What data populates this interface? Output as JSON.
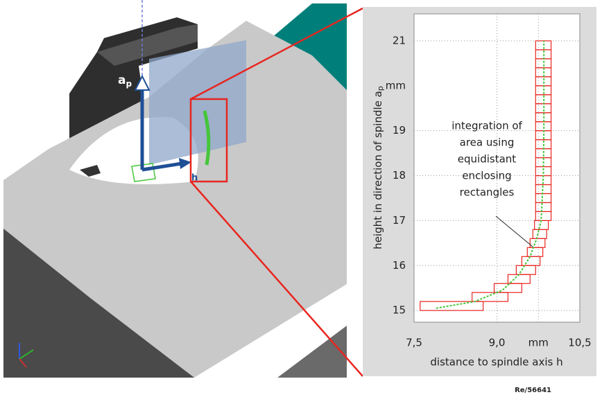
{
  "chart_data": {
    "type": "rectangles",
    "y_label": "height in direction of spindle a",
    "y_label_sub": "p",
    "x_label": "distance to spindle axis h",
    "annotation": [
      "integration of",
      "area using",
      "equidistant",
      "enclosing",
      "rectangles"
    ],
    "xlim": [
      7.5,
      10.5
    ],
    "ylim": [
      14.74,
      21.6
    ],
    "xticks": [
      {
        "value": 7.5,
        "label": "7,5"
      },
      {
        "value": 9,
        "label": "9,0"
      },
      {
        "value": 9.75,
        "label": "mm"
      },
      {
        "value": 10.5,
        "label": "10,5"
      }
    ],
    "yticks": [
      15,
      16,
      17,
      18,
      19,
      {
        "value": 20,
        "label": "mm"
      },
      21
    ],
    "grid": true,
    "color": "#e8251f",
    "curve_color": "#45c63a",
    "rectangles": {
      "y_bottom": [
        15,
        15.2,
        15.4,
        15.6,
        15.8,
        16,
        16.2,
        16.4,
        16.6,
        16.8,
        17,
        17.2,
        17.4,
        17.6,
        17.8,
        18,
        18.2,
        18.4,
        18.6,
        18.8,
        19,
        19.2,
        19.4,
        19.6,
        19.8,
        20,
        20.2,
        20.4,
        20.6,
        20.8
      ],
      "y_top": [
        15.2,
        15.4,
        15.6,
        15.8,
        16,
        16.2,
        16.4,
        16.6,
        16.8,
        17,
        17.2,
        17.4,
        17.6,
        17.8,
        18,
        18.2,
        18.4,
        18.6,
        18.8,
        19,
        19.2,
        19.4,
        19.6,
        19.8,
        20,
        20.2,
        20.4,
        20.6,
        20.8,
        21
      ],
      "x_left": [
        7.61,
        8.55,
        8.95,
        9.2,
        9.35,
        9.45,
        9.55,
        9.6,
        9.65,
        9.68,
        9.7,
        9.7,
        9.7,
        9.7,
        9.7,
        9.7,
        9.7,
        9.7,
        9.7,
        9.7,
        9.7,
        9.7,
        9.7,
        9.7,
        9.7,
        9.7,
        9.7,
        9.7,
        9.7,
        9.7
      ],
      "x_right": [
        8.75,
        9.2,
        9.45,
        9.6,
        9.7,
        9.78,
        9.83,
        9.87,
        9.9,
        9.93,
        9.98,
        9.98,
        9.98,
        9.98,
        9.98,
        9.98,
        9.98,
        9.98,
        9.98,
        9.98,
        9.98,
        9.98,
        9.98,
        9.98,
        9.98,
        9.98,
        9.98,
        9.98,
        9.98,
        9.98
      ]
    },
    "curve": {
      "x": [
        7.9,
        8.6,
        9.1,
        9.4,
        9.6,
        9.72,
        9.8,
        9.84,
        9.85,
        9.85
      ],
      "y": [
        15.05,
        15.2,
        15.45,
        15.8,
        16.2,
        16.6,
        17,
        18,
        19,
        21
      ]
    }
  },
  "scene_labels": {
    "ap": "a",
    "ap_sub": "p",
    "h": "h"
  },
  "figure_id": "Re/56641"
}
